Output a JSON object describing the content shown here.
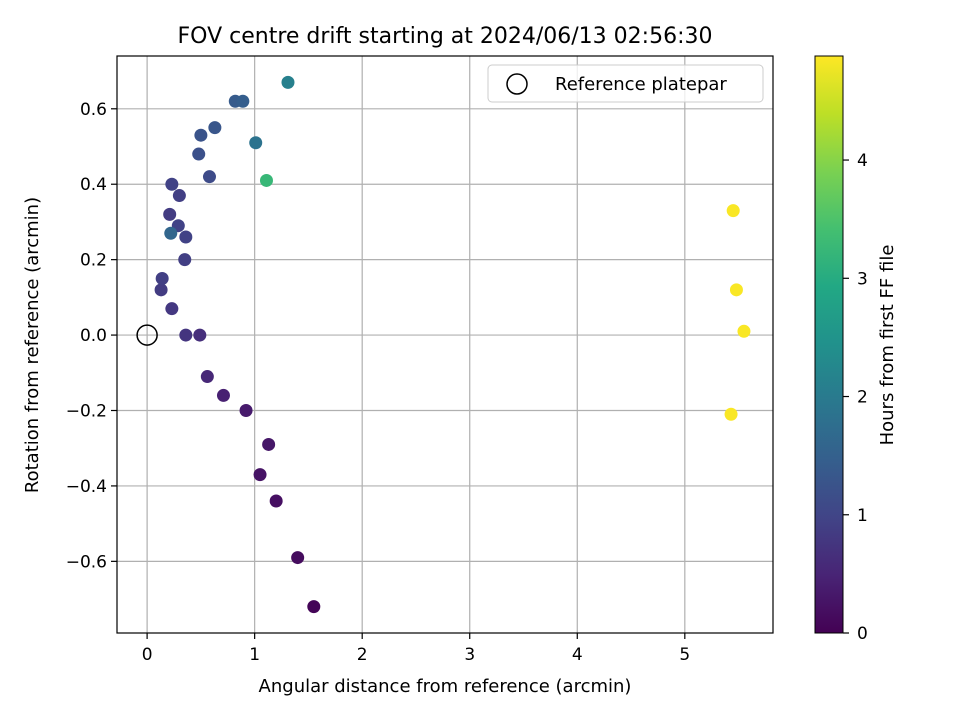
{
  "chart_data": {
    "type": "scatter",
    "title": "FOV centre drift starting at 2024/06/13 02:56:30",
    "xlabel": "Angular distance from reference (arcmin)",
    "ylabel": "Rotation from reference (arcmin)",
    "xlim": [
      -0.28,
      5.82
    ],
    "ylim": [
      -0.79,
      0.74
    ],
    "xticks": [
      0,
      1,
      2,
      3,
      4,
      5
    ],
    "yticks": [
      -0.6,
      -0.4,
      -0.2,
      0.0,
      0.2,
      0.4,
      0.6
    ],
    "xtick_labels": [
      "0",
      "1",
      "2",
      "3",
      "4",
      "5"
    ],
    "ytick_labels": [
      "−0.6",
      "−0.4",
      "−0.2",
      "0.0",
      "0.2",
      "0.4",
      "0.6"
    ],
    "grid": true,
    "legend": {
      "placement": "top-right",
      "entries": [
        "Reference platepar"
      ]
    },
    "colormap": "viridis",
    "colorbar": {
      "label": "Hours from first FF file",
      "range": [
        0,
        4.88
      ],
      "ticks": [
        0,
        1,
        2,
        3,
        4
      ],
      "tick_labels": [
        "0",
        "1",
        "2",
        "3",
        "4"
      ]
    },
    "reference_point": {
      "x": 0.0,
      "y": 0.0
    },
    "points": [
      {
        "x": 1.55,
        "y": -0.72,
        "hours": 0.05
      },
      {
        "x": 1.4,
        "y": -0.59,
        "hours": 0.15
      },
      {
        "x": 1.2,
        "y": -0.44,
        "hours": 0.2
      },
      {
        "x": 1.05,
        "y": -0.37,
        "hours": 0.25
      },
      {
        "x": 1.13,
        "y": -0.29,
        "hours": 0.3
      },
      {
        "x": 0.92,
        "y": -0.2,
        "hours": 0.35
      },
      {
        "x": 0.71,
        "y": -0.16,
        "hours": 0.45
      },
      {
        "x": 0.56,
        "y": -0.11,
        "hours": 0.55
      },
      {
        "x": 0.49,
        "y": 0.0,
        "hours": 0.65
      },
      {
        "x": 0.36,
        "y": 0.0,
        "hours": 0.75
      },
      {
        "x": 0.23,
        "y": 0.07,
        "hours": 0.8
      },
      {
        "x": 0.13,
        "y": 0.12,
        "hours": 0.85
      },
      {
        "x": 0.14,
        "y": 0.15,
        "hours": 0.9
      },
      {
        "x": 0.35,
        "y": 0.2,
        "hours": 0.9
      },
      {
        "x": 0.36,
        "y": 0.26,
        "hours": 0.95
      },
      {
        "x": 0.29,
        "y": 0.29,
        "hours": 0.95
      },
      {
        "x": 0.21,
        "y": 0.32,
        "hours": 0.85
      },
      {
        "x": 0.3,
        "y": 0.37,
        "hours": 0.9
      },
      {
        "x": 0.23,
        "y": 0.4,
        "hours": 0.95
      },
      {
        "x": 0.58,
        "y": 0.42,
        "hours": 1.1
      },
      {
        "x": 0.48,
        "y": 0.48,
        "hours": 1.2
      },
      {
        "x": 0.5,
        "y": 0.53,
        "hours": 1.25
      },
      {
        "x": 0.63,
        "y": 0.55,
        "hours": 1.3
      },
      {
        "x": 0.82,
        "y": 0.62,
        "hours": 1.4
      },
      {
        "x": 0.89,
        "y": 0.62,
        "hours": 1.45
      },
      {
        "x": 1.01,
        "y": 0.51,
        "hours": 1.85
      },
      {
        "x": 1.31,
        "y": 0.67,
        "hours": 2.1
      },
      {
        "x": 0.22,
        "y": 0.27,
        "hours": 1.6
      },
      {
        "x": 1.11,
        "y": 0.41,
        "hours": 3.25
      },
      {
        "x": 5.45,
        "y": 0.33,
        "hours": 4.85
      },
      {
        "x": 5.48,
        "y": 0.12,
        "hours": 4.85
      },
      {
        "x": 5.55,
        "y": 0.01,
        "hours": 4.85
      },
      {
        "x": 5.43,
        "y": -0.21,
        "hours": 4.85
      }
    ]
  }
}
